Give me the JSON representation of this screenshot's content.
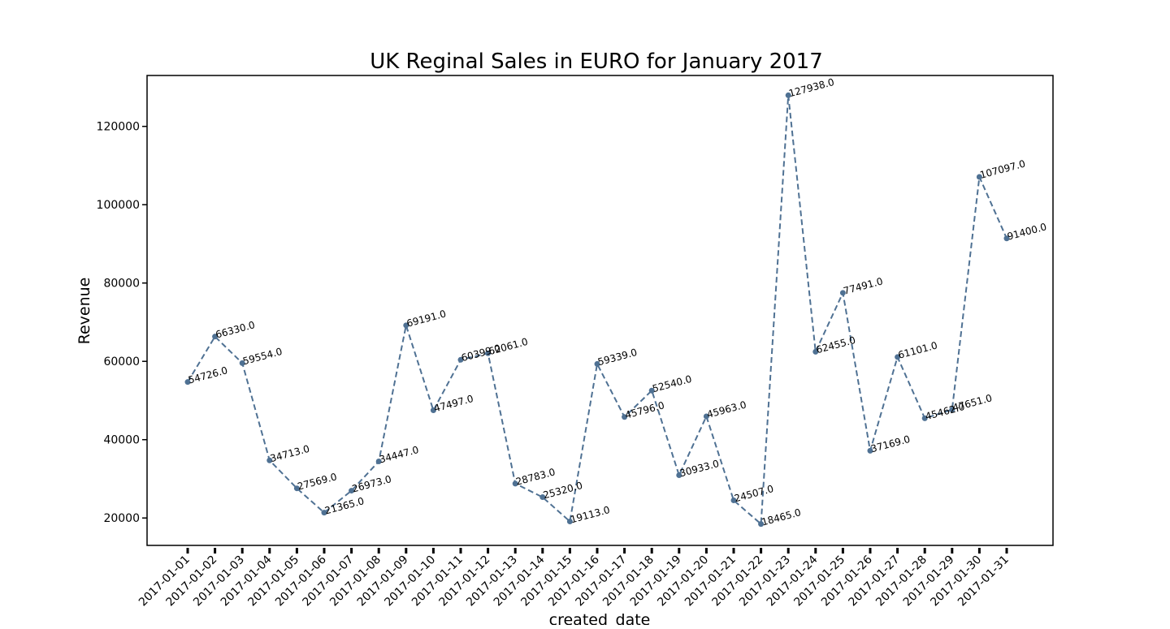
{
  "chart_data": {
    "type": "line",
    "title": "UK Reginal Sales in EURO for January 2017",
    "xlabel": "created_date",
    "ylabel": "Revenue",
    "categories": [
      "2017-01-01",
      "2017-01-02",
      "2017-01-03",
      "2017-01-04",
      "2017-01-05",
      "2017-01-06",
      "2017-01-07",
      "2017-01-08",
      "2017-01-09",
      "2017-01-10",
      "2017-01-11",
      "2017-01-12",
      "2017-01-13",
      "2017-01-14",
      "2017-01-15",
      "2017-01-16",
      "2017-01-17",
      "2017-01-18",
      "2017-01-19",
      "2017-01-20",
      "2017-01-21",
      "2017-01-22",
      "2017-01-23",
      "2017-01-24",
      "2017-01-25",
      "2017-01-26",
      "2017-01-27",
      "2017-01-28",
      "2017-01-29",
      "2017-01-30",
      "2017-01-31"
    ],
    "values": [
      54726.0,
      66330.0,
      59554.0,
      34713.0,
      27569.0,
      21365.0,
      26973.0,
      34447.0,
      69191.0,
      47497.0,
      60399.0,
      62061.0,
      28783.0,
      25320.0,
      19113.0,
      59339.0,
      45796.0,
      52540.0,
      30933.0,
      45963.0,
      24507.0,
      18465.0,
      127938.0,
      62455.0,
      77491.0,
      37169.0,
      61101.0,
      45462.0,
      47651.0,
      107097.0,
      91400.0
    ],
    "data_labels": [
      "54726.0",
      "66330.0",
      "59554.0",
      "34713.0",
      "27569.0",
      "21365.0",
      "26973.0",
      "34447.0",
      "69191.0",
      "47497.0",
      "60399.0",
      "62061.0",
      "28783.0",
      "25320.0",
      "19113.0",
      "59339.0",
      "45796.0",
      "52540.0",
      "30933.0",
      "45963.0",
      "24507.0",
      "18465.0",
      "127938.0",
      "62455.0",
      "77491.0",
      "37169.0",
      "61101.0",
      "45462.0",
      "47651.0",
      "107097.0",
      "91400.0"
    ],
    "yticks": [
      20000,
      40000,
      60000,
      80000,
      100000,
      120000
    ],
    "ylim": [
      13000,
      133000
    ],
    "line_style": "dashed",
    "marker": "circle",
    "line_color": "#4f7193",
    "grid": false,
    "legend": "none"
  }
}
